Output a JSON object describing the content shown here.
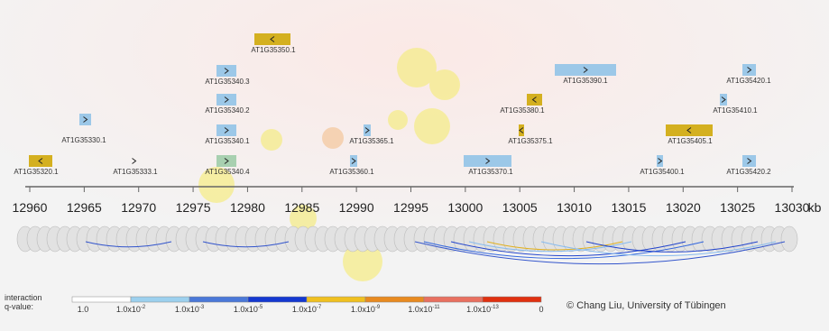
{
  "genes": [
    "AT1G35350.1",
    "AT1G35340.3",
    "AT1G35390.1",
    "AT1G35420.1",
    "AT1G35340.2",
    "AT1G35380.1",
    "AT1G35410.1",
    "AT1G35330.1",
    "AT1G35340.1",
    "AT1G35365.1",
    "AT1G35375.1",
    "AT1G35405.1",
    "AT1G35320.1",
    "AT1G35333.1",
    "AT1G35340.4",
    "AT1G35360.1",
    "AT1G35370.1",
    "AT1G35400.1",
    "AT1G35420.2"
  ],
  "axis": {
    "ticks": [
      12960,
      12965,
      12970,
      12975,
      12980,
      12985,
      12990,
      12995,
      13000,
      13005,
      13010,
      13015,
      13020,
      13025,
      13030
    ],
    "unit": "kb"
  },
  "legend": {
    "title": [
      "interaction",
      "q-value:"
    ],
    "labels": [
      "1.0",
      {
        "base": "1.0x10",
        "exp": "-2"
      },
      {
        "base": "1.0x10",
        "exp": "-3"
      },
      {
        "base": "1.0x10",
        "exp": "-5"
      },
      {
        "base": "1.0x10",
        "exp": "-7"
      },
      {
        "base": "1.0x10",
        "exp": "-9"
      },
      {
        "base": "1.0x10",
        "exp": "-11"
      },
      {
        "base": "1.0x10",
        "exp": "-13"
      },
      "0"
    ]
  },
  "credit": "© Chang Liu, University of Tübingen"
}
